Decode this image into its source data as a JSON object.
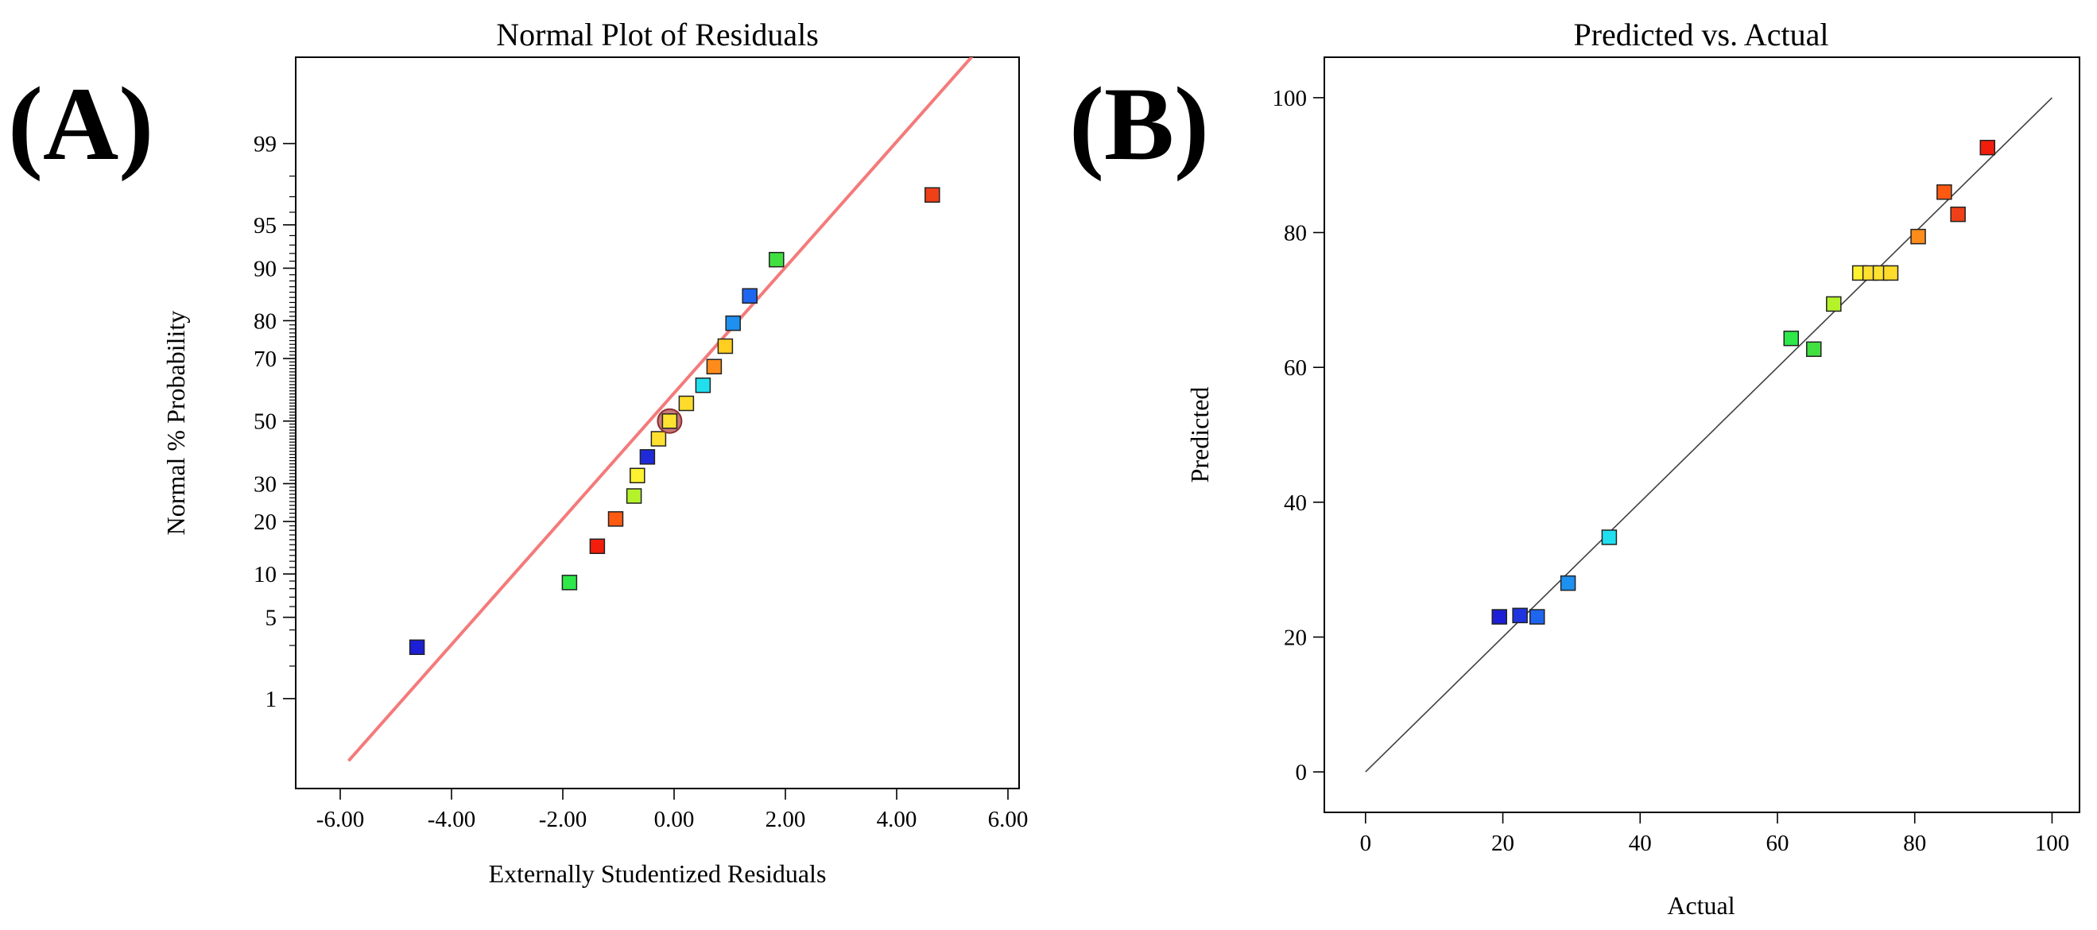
{
  "chart_data": [
    {
      "panel_label": "(A)",
      "type": "scatter",
      "title": "Normal Plot of Residuals",
      "xlabel": "Externally Studentized Residuals",
      "ylabel": "Normal % Probability",
      "x_range": [
        -6.8,
        6.2
      ],
      "y_scale": "normal-probability",
      "x_ticks": [
        -6,
        -4,
        -2,
        0,
        2,
        4,
        6
      ],
      "x_tick_labels": [
        "-6.00",
        "-4.00",
        "-2.00",
        "0.00",
        "2.00",
        "4.00",
        "6.00"
      ],
      "y_ticks": [
        1,
        5,
        10,
        20,
        30,
        50,
        70,
        80,
        90,
        95,
        99
      ],
      "y_tick_labels": [
        "1",
        "5",
        "10",
        "20",
        "30",
        "50",
        "70",
        "80",
        "90",
        "95",
        "99"
      ],
      "reference_line": {
        "color": "#f47a7a",
        "points": [
          [
            -5.85,
            0.22
          ],
          [
            5.8,
            99.95
          ]
        ]
      },
      "points": [
        {
          "x": -4.62,
          "y": 2.9,
          "color": "#1d1fd6"
        },
        {
          "x": -1.88,
          "y": 8.8,
          "color": "#2ee84a"
        },
        {
          "x": -1.38,
          "y": 14.7,
          "color": "#f21d0c"
        },
        {
          "x": -1.05,
          "y": 20.6,
          "color": "#ff5a12"
        },
        {
          "x": -0.72,
          "y": 26.5,
          "color": "#b4f22a"
        },
        {
          "x": -0.66,
          "y": 32.4,
          "color": "#fff230"
        },
        {
          "x": -0.48,
          "y": 38.2,
          "color": "#1f2bd9"
        },
        {
          "x": -0.28,
          "y": 44.1,
          "color": "#ffe030"
        },
        {
          "x": -0.08,
          "y": 50.0,
          "color": "#ffe330",
          "highlighted": true
        },
        {
          "x": 0.22,
          "y": 55.9,
          "color": "#ffdc2c"
        },
        {
          "x": 0.52,
          "y": 61.8,
          "color": "#20e0f0"
        },
        {
          "x": 0.72,
          "y": 67.6,
          "color": "#ff8c1a"
        },
        {
          "x": 0.92,
          "y": 73.5,
          "color": "#ffce20"
        },
        {
          "x": 1.06,
          "y": 79.4,
          "color": "#1e90f0"
        },
        {
          "x": 1.36,
          "y": 85.3,
          "color": "#1e66f0"
        },
        {
          "x": 1.84,
          "y": 91.2,
          "color": "#40e040"
        },
        {
          "x": 4.64,
          "y": 97.1,
          "color": "#f04018"
        }
      ]
    },
    {
      "panel_label": "(B)",
      "type": "scatter",
      "title": "Predicted vs. Actual",
      "xlabel": "Actual",
      "ylabel": "Predicted",
      "x_range": [
        -6,
        104
      ],
      "y_range": [
        -6,
        106
      ],
      "x_ticks": [
        0,
        20,
        40,
        60,
        80,
        100
      ],
      "x_tick_labels": [
        "0",
        "20",
        "40",
        "60",
        "80",
        "100"
      ],
      "y_ticks": [
        0,
        20,
        40,
        60,
        80,
        100
      ],
      "y_tick_labels": [
        "0",
        "20",
        "40",
        "60",
        "80",
        "100"
      ],
      "reference_line": {
        "color": "#404040",
        "points": [
          [
            0,
            0
          ],
          [
            100,
            100
          ]
        ]
      },
      "points": [
        {
          "x": 19.5,
          "y": 23.0,
          "color": "#1d1fd6"
        },
        {
          "x": 22.5,
          "y": 23.2,
          "color": "#1f35e0"
        },
        {
          "x": 25.0,
          "y": 23.0,
          "color": "#1e66f0"
        },
        {
          "x": 29.5,
          "y": 28.0,
          "color": "#1e90f0"
        },
        {
          "x": 35.5,
          "y": 34.8,
          "color": "#20e0f0"
        },
        {
          "x": 62.0,
          "y": 64.3,
          "color": "#2ee84a"
        },
        {
          "x": 65.3,
          "y": 62.7,
          "color": "#40e040"
        },
        {
          "x": 68.2,
          "y": 69.4,
          "color": "#b4f22a"
        },
        {
          "x": 72.0,
          "y": 74.0,
          "color": "#fff230"
        },
        {
          "x": 73.5,
          "y": 74.0,
          "color": "#ffe030"
        },
        {
          "x": 75.0,
          "y": 74.0,
          "color": "#ffe330"
        },
        {
          "x": 76.5,
          "y": 74.0,
          "color": "#ffdc2c"
        },
        {
          "x": 80.5,
          "y": 79.4,
          "color": "#ff8c1a"
        },
        {
          "x": 84.3,
          "y": 86.0,
          "color": "#ff5a12"
        },
        {
          "x": 86.3,
          "y": 82.7,
          "color": "#f04018"
        },
        {
          "x": 90.6,
          "y": 92.6,
          "color": "#f21d0c"
        }
      ]
    }
  ]
}
